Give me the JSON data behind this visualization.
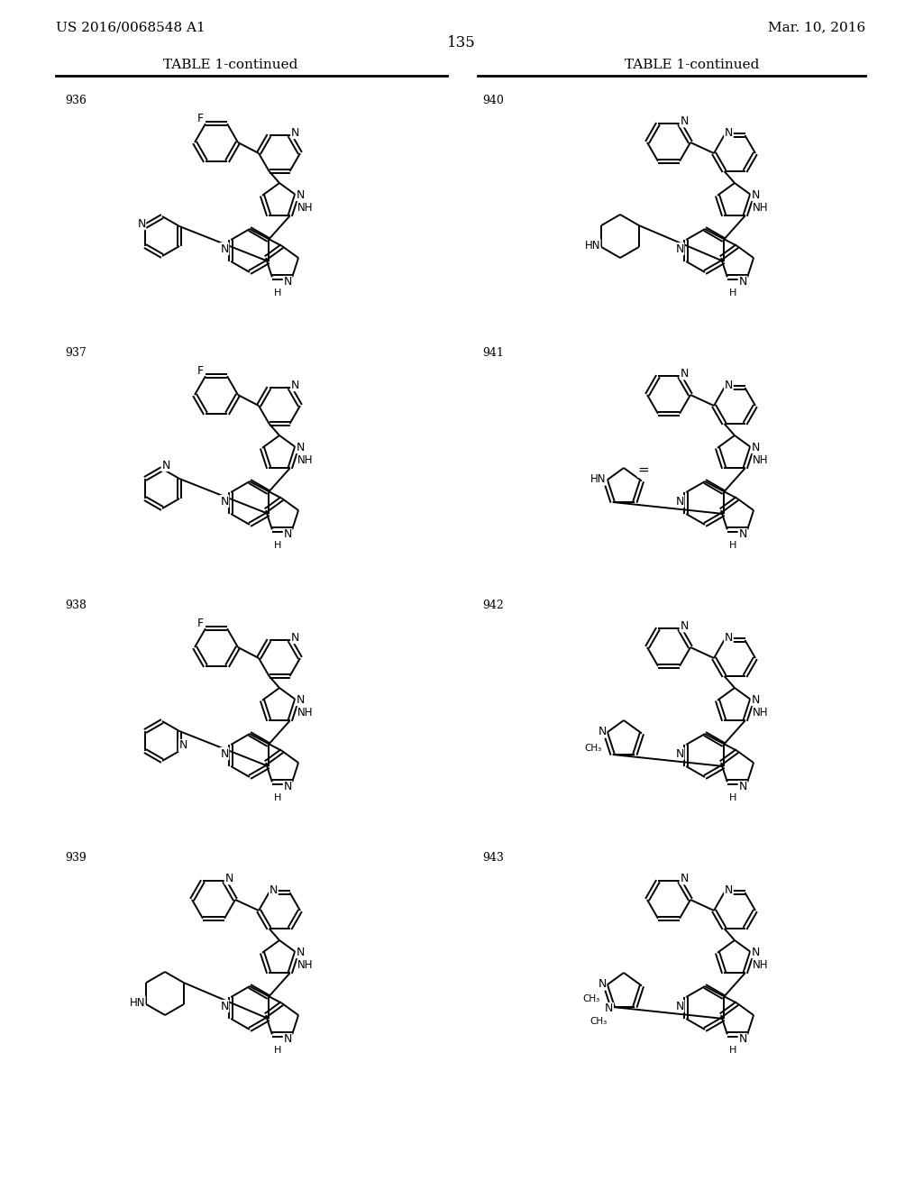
{
  "patent_number": "US 2016/0068548 A1",
  "date": "Mar. 10, 2016",
  "page_number": "135",
  "table_title": "TABLE 1-continued",
  "bg_color": "#ffffff",
  "compounds_left": [
    "936",
    "937",
    "938",
    "939"
  ],
  "compounds_right": [
    "940",
    "941",
    "942",
    "943"
  ],
  "left_substituents": {
    "936": "4-pyridyl",
    "937": "2-pyridyl",
    "938": "3-pyridyl",
    "939": "piperidine"
  },
  "right_substituents": {
    "940": "piperidine-HN",
    "941": "imidazole-HN",
    "942": "methylimidazole",
    "943": "dimethyltriazole"
  },
  "top_group": {
    "936": "F-phenyl",
    "937": "F-phenyl",
    "938": "F-phenyl",
    "939": "pyridine",
    "940": "pyridine",
    "941": "pyridine",
    "942": "pyridine",
    "943": "pyridine"
  }
}
